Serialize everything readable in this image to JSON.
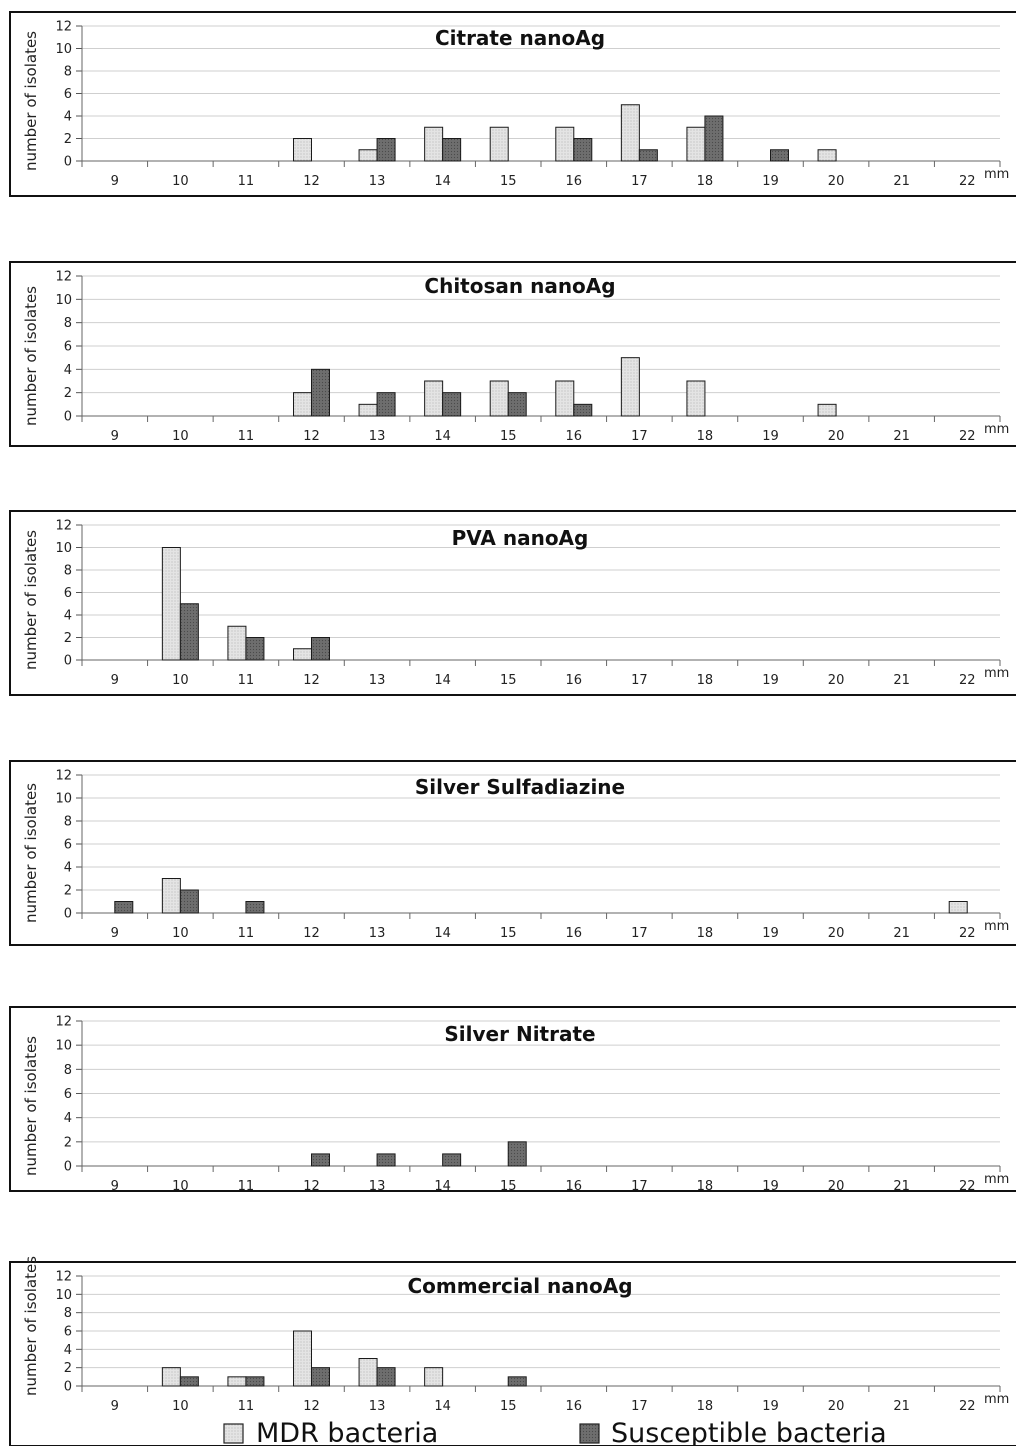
{
  "legend": {
    "mdr_label": "MDR bacteria",
    "susceptible_label": "Susceptible bacteria"
  },
  "colors": {
    "mdr": "#e2e2e2",
    "susceptible": "#6b6b6b",
    "grid": "#cfcfcf",
    "frame": "#111111"
  },
  "chart_data": [
    {
      "type": "bar",
      "title": "Citrate nanoAg",
      "ylabel": "number of isolates",
      "unit_label": "mm",
      "categories": [
        "9",
        "10",
        "11",
        "12",
        "13",
        "14",
        "15",
        "16",
        "17",
        "18",
        "19",
        "20",
        "21",
        "22"
      ],
      "ylim": [
        0,
        12
      ],
      "yticks": [
        0,
        2,
        4,
        6,
        8,
        10,
        12
      ],
      "grid": true,
      "series": [
        {
          "name": "MDR bacteria",
          "values": [
            0,
            0,
            0,
            2,
            1,
            3,
            3,
            3,
            5,
            3,
            0,
            1,
            0,
            0
          ]
        },
        {
          "name": "Susceptible bacteria",
          "values": [
            0,
            0,
            0,
            0,
            2,
            2,
            0,
            2,
            1,
            4,
            1,
            0,
            0,
            0
          ]
        }
      ]
    },
    {
      "type": "bar",
      "title": "Chitosan nanoAg",
      "ylabel": "number of isolates",
      "unit_label": "mm",
      "categories": [
        "9",
        "10",
        "11",
        "12",
        "13",
        "14",
        "15",
        "16",
        "17",
        "18",
        "19",
        "20",
        "21",
        "22"
      ],
      "ylim": [
        0,
        12
      ],
      "yticks": [
        0,
        2,
        4,
        6,
        8,
        10,
        12
      ],
      "grid": true,
      "series": [
        {
          "name": "MDR bacteria",
          "values": [
            0,
            0,
            0,
            2,
            1,
            3,
            3,
            3,
            5,
            3,
            0,
            1,
            0,
            0
          ]
        },
        {
          "name": "Susceptible bacteria",
          "values": [
            0,
            0,
            0,
            4,
            2,
            2,
            2,
            1,
            0,
            0,
            0,
            0,
            0,
            0
          ]
        }
      ]
    },
    {
      "type": "bar",
      "title": "PVA nanoAg",
      "ylabel": "number of isolates",
      "unit_label": "mm",
      "categories": [
        "9",
        "10",
        "11",
        "12",
        "13",
        "14",
        "15",
        "16",
        "17",
        "18",
        "19",
        "20",
        "21",
        "22"
      ],
      "ylim": [
        0,
        12
      ],
      "yticks": [
        0,
        2,
        4,
        6,
        8,
        10,
        12
      ],
      "grid": true,
      "series": [
        {
          "name": "MDR bacteria",
          "values": [
            0,
            10,
            3,
            1,
            0,
            0,
            0,
            0,
            0,
            0,
            0,
            0,
            0,
            0
          ]
        },
        {
          "name": "Susceptible bacteria",
          "values": [
            0,
            5,
            2,
            2,
            0,
            0,
            0,
            0,
            0,
            0,
            0,
            0,
            0,
            0
          ]
        }
      ]
    },
    {
      "type": "bar",
      "title": "Silver Sulfadiazine",
      "ylabel": "number of isolates",
      "unit_label": "mm",
      "categories": [
        "9",
        "10",
        "11",
        "12",
        "13",
        "14",
        "15",
        "16",
        "17",
        "18",
        "19",
        "20",
        "21",
        "22"
      ],
      "ylim": [
        0,
        12
      ],
      "yticks": [
        0,
        2,
        4,
        6,
        8,
        10,
        12
      ],
      "grid": true,
      "series": [
        {
          "name": "MDR bacteria",
          "values": [
            0,
            3,
            0,
            0,
            0,
            0,
            0,
            0,
            0,
            0,
            0,
            0,
            0,
            1
          ]
        },
        {
          "name": "Susceptible bacteria",
          "values": [
            1,
            2,
            1,
            0,
            0,
            0,
            0,
            0,
            0,
            0,
            0,
            0,
            0,
            0
          ]
        }
      ]
    },
    {
      "type": "bar",
      "title": "Silver Nitrate",
      "ylabel": "number of isolates",
      "unit_label": "mm",
      "categories": [
        "9",
        "10",
        "11",
        "12",
        "13",
        "14",
        "15",
        "16",
        "17",
        "18",
        "19",
        "20",
        "21",
        "22"
      ],
      "ylim": [
        0,
        12
      ],
      "yticks": [
        0,
        2,
        4,
        6,
        8,
        10,
        12
      ],
      "grid": true,
      "series": [
        {
          "name": "MDR bacteria",
          "values": [
            0,
            0,
            0,
            0,
            0,
            0,
            0,
            0,
            0,
            0,
            0,
            0,
            0,
            0
          ]
        },
        {
          "name": "Susceptible bacteria",
          "values": [
            0,
            0,
            0,
            1,
            1,
            1,
            2,
            0,
            0,
            0,
            0,
            0,
            0,
            0
          ]
        }
      ]
    },
    {
      "type": "bar",
      "title": "Commercial nanoAg",
      "ylabel": "number of isolates",
      "unit_label": "mm",
      "categories": [
        "9",
        "10",
        "11",
        "12",
        "13",
        "14",
        "15",
        "16",
        "17",
        "18",
        "19",
        "20",
        "21",
        "22"
      ],
      "ylim": [
        0,
        12
      ],
      "yticks": [
        0,
        2,
        4,
        6,
        8,
        10,
        12
      ],
      "grid": true,
      "series": [
        {
          "name": "MDR bacteria",
          "values": [
            0,
            2,
            1,
            6,
            3,
            2,
            0,
            0,
            0,
            0,
            0,
            0,
            0,
            0
          ]
        },
        {
          "name": "Susceptible bacteria",
          "values": [
            0,
            1,
            1,
            2,
            2,
            0,
            1,
            0,
            0,
            0,
            0,
            0,
            0,
            0
          ]
        }
      ]
    }
  ]
}
